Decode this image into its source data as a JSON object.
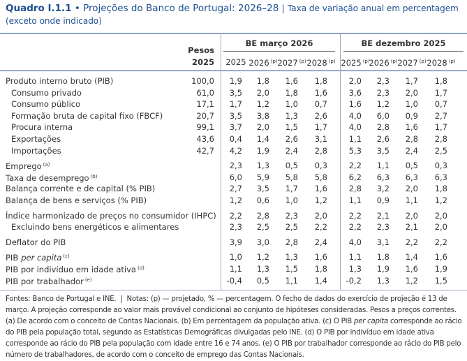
{
  "header": {
    "label": "Quadro I.1.1",
    "bullet": "•",
    "title": "Projeções do Banco de Portugal: 2026–28",
    "divider": "|",
    "subtitle": "Taxa de variação anual em percentagem (exceto onde indicado)"
  },
  "table": {
    "weights_header": [
      "Pesos",
      "2025"
    ],
    "groups": [
      {
        "name": "BE março 2026",
        "columns": [
          {
            "year": "2025"
          },
          {
            "year": "2026",
            "note": "(p)"
          },
          {
            "year": "2027",
            "note": "(p)"
          },
          {
            "year": "2028",
            "note": "(p)"
          }
        ]
      },
      {
        "name": "BE dezembro 2025",
        "columns": [
          {
            "year": "2025",
            "note": "(p)"
          },
          {
            "year": "2026",
            "note": "(p)"
          },
          {
            "year": "2027",
            "note": "(p)"
          },
          {
            "year": "2028",
            "note": "(p)"
          }
        ]
      }
    ],
    "sections": [
      [
        {
          "label": "Produto interno bruto (PIB)",
          "weight": "100,0",
          "values": [
            [
              "1,9",
              "1,8",
              "1,6",
              "1,8"
            ],
            [
              "2,0",
              "2,3",
              "1,7",
              "1,8"
            ]
          ]
        },
        {
          "label": "Consumo privado",
          "indent": true,
          "weight": "61,0",
          "values": [
            [
              "3,5",
              "2,0",
              "1,8",
              "1,6"
            ],
            [
              "3,6",
              "2,3",
              "2,0",
              "1,7"
            ]
          ]
        },
        {
          "label": "Consumo público",
          "indent": true,
          "weight": "17,1",
          "values": [
            [
              "1,7",
              "1,2",
              "1,0",
              "0,7"
            ],
            [
              "1,6",
              "1,2",
              "1,0",
              "0,7"
            ]
          ]
        },
        {
          "label": "Formação bruta de capital fixo (FBCF)",
          "indent": true,
          "weight": "20,7",
          "values": [
            [
              "3,5",
              "3,8",
              "1,3",
              "2,6"
            ],
            [
              "4,0",
              "6,0",
              "0,9",
              "2,7"
            ]
          ]
        },
        {
          "label": "Procura interna",
          "indent": true,
          "weight": "99,1",
          "values": [
            [
              "3,7",
              "2,0",
              "1,5",
              "1,7"
            ],
            [
              "4,0",
              "2,8",
              "1,6",
              "1,7"
            ]
          ]
        },
        {
          "label": "Exportações",
          "indent": true,
          "weight": "43,6",
          "values": [
            [
              "0,4",
              "1,4",
              "2,6",
              "3,1"
            ],
            [
              "1,1",
              "2,6",
              "2,8",
              "2,8"
            ]
          ]
        },
        {
          "label": "Importações",
          "indent": true,
          "weight": "42,7",
          "values": [
            [
              "4,2",
              "1,9",
              "2,4",
              "2,8"
            ],
            [
              "5,3",
              "3,5",
              "2,4",
              "2,5"
            ]
          ]
        }
      ],
      [
        {
          "label": "Emprego",
          "note": "(a)",
          "values": [
            [
              "2,3",
              "1,3",
              "0,5",
              "0,3"
            ],
            [
              "2,2",
              "1,1",
              "0,5",
              "0,3"
            ]
          ]
        },
        {
          "label": "Taxa de desemprego",
          "note": "(b)",
          "values": [
            [
              "6,0",
              "5,9",
              "5,8",
              "5,8"
            ],
            [
              "6,2",
              "6,3",
              "6,3",
              "6,3"
            ]
          ]
        },
        {
          "label": "Balança corrente e de capital (% PIB)",
          "values": [
            [
              "2,7",
              "3,5",
              "1,7",
              "1,6"
            ],
            [
              "2,8",
              "3,2",
              "2,0",
              "1,8"
            ]
          ]
        },
        {
          "label": "Balança de bens e serviços (% PIB)",
          "values": [
            [
              "1,2",
              "0,6",
              "1,0",
              "1,2"
            ],
            [
              "1,1",
              "0,9",
              "1,1",
              "1,2"
            ]
          ]
        }
      ],
      [
        {
          "label": "Índice harmonizado de preços no consumidor (IHPC)",
          "values": [
            [
              "2,2",
              "2,8",
              "2,3",
              "2,0"
            ],
            [
              "2,2",
              "2,1",
              "2,0",
              "2,0"
            ]
          ]
        },
        {
          "label": "Excluindo bens energéticos e alimentares",
          "indent": true,
          "values": [
            [
              "2,3",
              "2,5",
              "2,5",
              "2,2"
            ],
            [
              "2,2",
              "2,3",
              "2,1",
              "2,0"
            ]
          ]
        }
      ],
      [
        {
          "label": "Deflator do PIB",
          "values": [
            [
              "3,9",
              "3,0",
              "2,8",
              "2,4"
            ],
            [
              "4,0",
              "3,1",
              "2,2",
              "2,2"
            ]
          ]
        }
      ],
      [
        {
          "label": "PIB",
          "italic": "per capita",
          "note": "(c)",
          "values": [
            [
              "1,0",
              "1,2",
              "1,3",
              "1,6"
            ],
            [
              "1,1",
              "1,8",
              "1,4",
              "1,6"
            ]
          ]
        },
        {
          "label": "PIB por indivíduo em idade ativa",
          "note": "(d)",
          "values": [
            [
              "1,1",
              "1,3",
              "1,5",
              "1,8"
            ],
            [
              "1,3",
              "1,9",
              "1,6",
              "1,9"
            ]
          ]
        },
        {
          "label": "PIB por trabalhador",
          "note": "(e)",
          "values": [
            [
              "-0,4",
              "0,5",
              "1,1",
              "1,4"
            ],
            [
              "-0,2",
              "1,3",
              "1,2",
              "1,5"
            ]
          ]
        }
      ]
    ]
  },
  "footnote": [
    {
      "text": "Fontes: Banco de Portugal e INE.  |  Notas: (p) — projetado, % — percentagem. O fecho de dados do exercício de projeção é 13 de março. A projeção corresponde ao valor mais provável condicional ao conjunto de hipóteses consideradas. Pesos a preços correntes. (a) De acordo com o conceito de Contas Nacionais. (b) Em percentagem da população ativa. (c) O PIB "
    },
    {
      "text": "per capita",
      "italic": true
    },
    {
      "text": " corresponde ao rácio do PIB pela população total, segundo as Estatísticas Demográficas divulgadas pelo INE. (d) O PIB por indivíduo em idade ativa corresponde ao rácio do PIB pela população com idade entre 16 e 74 anos. (e) O PIB por trabalhador corresponde ao rácio do PIB pelo número de trabalhadores, de acordo com o conceito de emprego das Contas Nacionais."
    }
  ]
}
